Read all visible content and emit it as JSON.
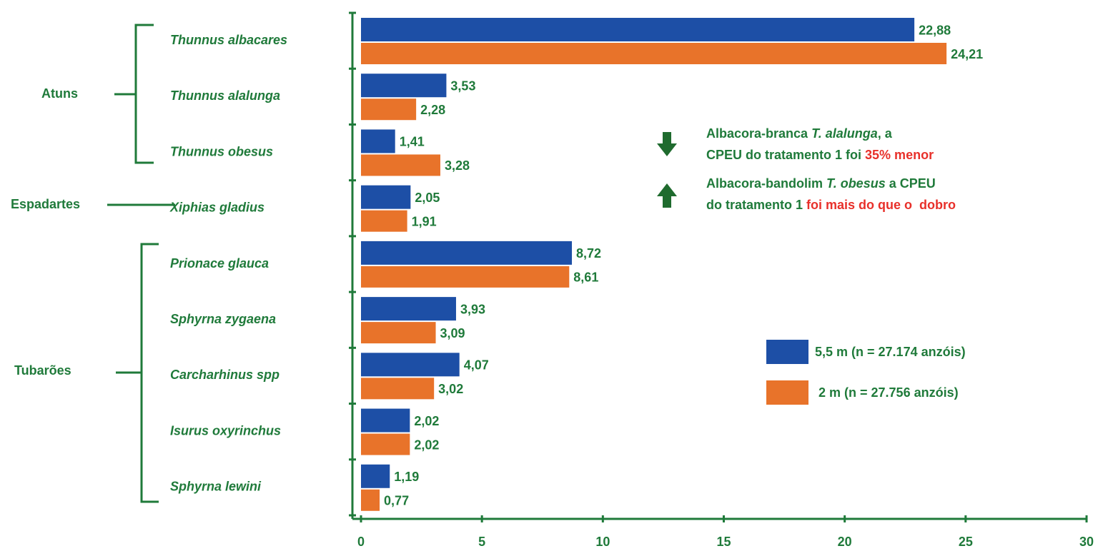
{
  "chart_data": {
    "type": "hbar",
    "categories": [
      "Thunnus albacares",
      "Thunnus alalunga",
      "Thunnus obesus",
      "Xiphias gladius",
      "Prionace glauca",
      "Sphyrna zygaena",
      "Carcharhinus spp",
      "Isurus oxyrinchus",
      "Sphyrna lewini"
    ],
    "series": [
      {
        "name": "5,5 m (n = 27.174 anzóis)",
        "color": "#1d4fa6",
        "values": [
          22.88,
          3.53,
          1.41,
          2.05,
          8.72,
          3.93,
          4.07,
          2.02,
          1.19
        ],
        "value_labels": [
          "22,88",
          "3,53",
          "1,41",
          "2,05",
          "8,72",
          "3,93",
          "4,07",
          "2,02",
          "1,19"
        ]
      },
      {
        "name": "2 m (n = 27.756 anzóis)",
        "color": "#e8732a",
        "values": [
          24.21,
          2.28,
          3.28,
          1.91,
          8.61,
          3.09,
          3.02,
          2.02,
          0.77
        ],
        "value_labels": [
          "24,21",
          "2,28",
          "3,28",
          "1,91",
          "8,61",
          "3,09",
          "3,02",
          "2,02",
          "0,77"
        ]
      }
    ],
    "xlim": [
      0,
      30
    ],
    "xticks": [
      0,
      5,
      10,
      15,
      20,
      25,
      30
    ],
    "groups": [
      {
        "label": "Atuns"
      },
      {
        "label": "Espadartes"
      },
      {
        "label": "Tubarões"
      }
    ],
    "annotations": [
      {
        "arrow": "down",
        "lines": [
          [
            {
              "text": "Albacora-branca "
            },
            {
              "text": "T. alalunga",
              "italic": true
            },
            {
              "text": ", a"
            }
          ],
          [
            {
              "text": "CPEU do tratamento 1 foi "
            },
            {
              "text": "35% menor",
              "color": "#e8302a"
            }
          ]
        ]
      },
      {
        "arrow": "up",
        "lines": [
          [
            {
              "text": "Albacora-bandolim "
            },
            {
              "text": "T. obesus",
              "italic": true
            },
            {
              "text": " a CPEU"
            }
          ],
          [
            {
              "text": "do tratamento 1 "
            },
            {
              "text": "foi mais do que o  dobro",
              "color": "#e8302a"
            }
          ]
        ]
      }
    ],
    "legend": "right"
  }
}
